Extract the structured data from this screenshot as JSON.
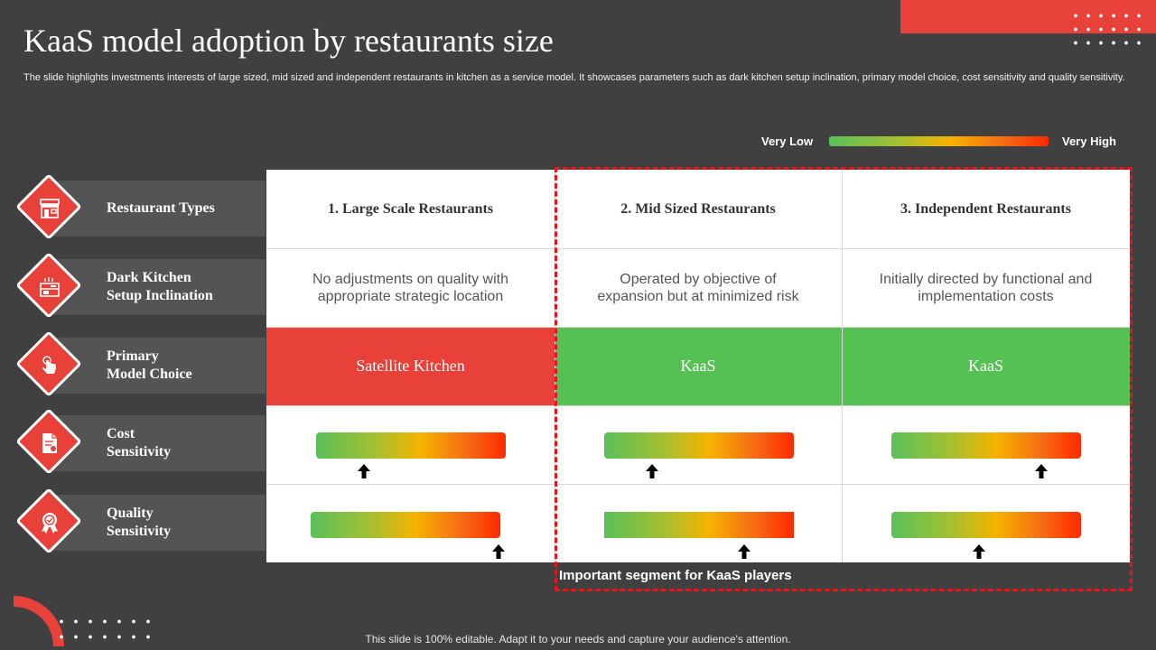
{
  "title": "KaaS model adoption by restaurants size",
  "subtitle": "The slide highlights investments interests of large sized, mid sized and independent restaurants in kitchen as a service model. It showcases parameters such as dark kitchen setup inclination, primary model choice, cost sensitivity and quality sensitivity.",
  "scale": {
    "low_label": "Very Low",
    "high_label": "Very High"
  },
  "rows": [
    {
      "label_line1": "Restaurant Types",
      "label_line2": "",
      "icon": "restaurant-icon"
    },
    {
      "label_line1": "Dark Kitchen",
      "label_line2": "Setup Inclination",
      "icon": "kitchen-icon"
    },
    {
      "label_line1": "Primary",
      "label_line2": "Model Choice",
      "icon": "hand-pointer-icon"
    },
    {
      "label_line1": "Cost",
      "label_line2": "Sensitivity",
      "icon": "document-cost-icon"
    },
    {
      "label_line1": "Quality",
      "label_line2": "Sensitivity",
      "icon": "quality-badge-icon"
    }
  ],
  "columns": [
    {
      "header": "1. Large Scale Restaurants",
      "inclination_line1": "No adjustments on quality with",
      "inclination_line2": "appropriate strategic location",
      "model_choice": "Satellite Kitchen",
      "model_color": "#e8413a",
      "cost_sensitivity_level": 0.25,
      "quality_sensitivity_level": 0.99
    },
    {
      "header": "2. Mid Sized Restaurants",
      "inclination_line1": "Operated by objective of",
      "inclination_line2": "expansion but at minimized risk",
      "model_choice": "KaaS",
      "model_color": "#55c155",
      "cost_sensitivity_level": 0.25,
      "quality_sensitivity_level": 0.74
    },
    {
      "header": "3. Independent Restaurants",
      "inclination_line1": "Initially directed  by functional and",
      "inclination_line2": "implementation costs",
      "model_choice": "KaaS",
      "model_color": "#55c155",
      "cost_sensitivity_level": 0.79,
      "quality_sensitivity_level": 0.46
    }
  ],
  "highlight_caption": "Important segment for KaaS players",
  "footer": "This slide is 100% editable. Adapt it to your needs and capture your audience's attention.",
  "colors": {
    "accent_red": "#e8413a",
    "accent_green": "#55c155",
    "background": "#404040"
  }
}
